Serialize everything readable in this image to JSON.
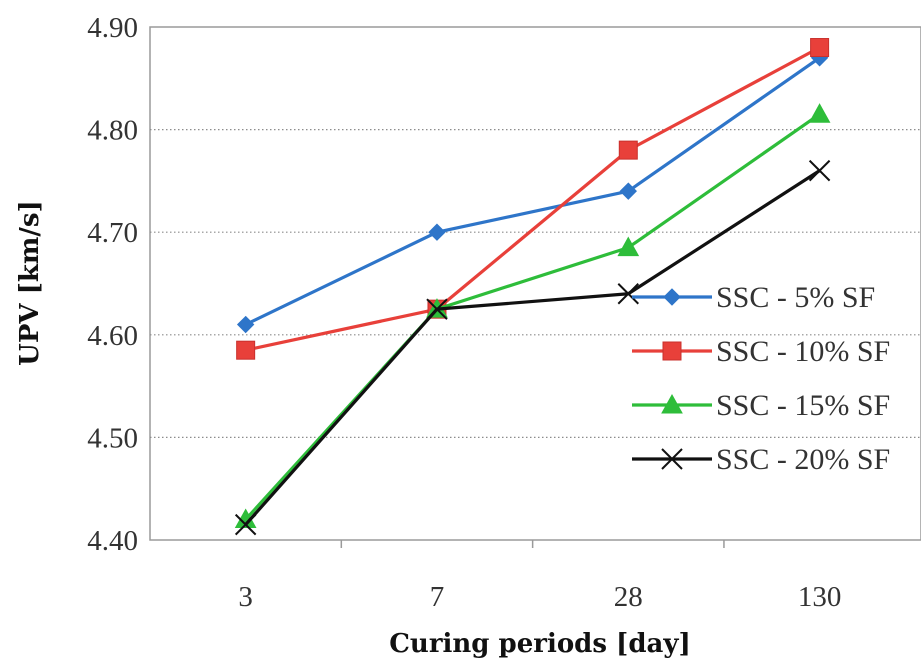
{
  "chart_data": {
    "type": "line",
    "title": "",
    "xlabel": "Curing periods [day]",
    "ylabel": "UPV [km/s]",
    "categories": [
      "3",
      "7",
      "28",
      "130"
    ],
    "ylim": [
      4.4,
      4.9
    ],
    "yticks": [
      "4.40",
      "4.50",
      "4.60",
      "4.70",
      "4.80",
      "4.90"
    ],
    "grid": "horizontal",
    "legend_position": "right",
    "series": [
      {
        "name": "SSC - 5% SF",
        "values": [
          4.61,
          4.7,
          4.74,
          4.87
        ],
        "color": "#2e75c9",
        "marker": "diamond"
      },
      {
        "name": "SSC - 10% SF",
        "values": [
          4.585,
          4.625,
          4.78,
          4.88
        ],
        "color": "#e8403a",
        "marker": "square"
      },
      {
        "name": "SSC - 15% SF",
        "values": [
          4.42,
          4.625,
          4.685,
          4.815
        ],
        "color": "#2ebd3a",
        "marker": "triangle"
      },
      {
        "name": "SSC - 20% SF",
        "values": [
          4.415,
          4.625,
          4.64,
          4.76
        ],
        "color": "#111111",
        "marker": "x"
      }
    ]
  }
}
